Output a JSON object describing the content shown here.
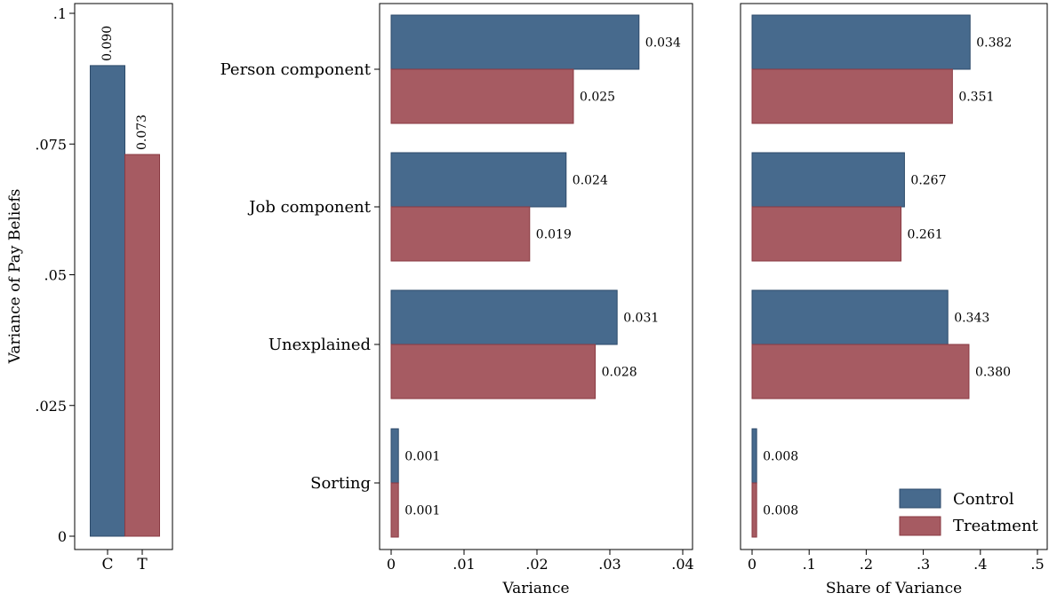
{
  "colors": {
    "control": "#476a8d",
    "control_edge": "#2c4a6a",
    "treatment": "#a65b62",
    "treatment_edge": "#8a3a42"
  },
  "legend": {
    "control": "Control",
    "treatment": "Treatment",
    "position": "bottom-right"
  },
  "chart_data": [
    {
      "id": "total",
      "type": "bar",
      "orientation": "vertical",
      "ylabel": "Variance of Pay Beliefs",
      "xlabel": "",
      "categories": [
        "C",
        "T"
      ],
      "values": [
        0.09,
        0.073
      ],
      "value_labels": [
        "0.090",
        "0.073"
      ],
      "ylim": [
        0,
        0.1
      ],
      "yticks": [
        0,
        0.025,
        0.05,
        0.075,
        0.1
      ],
      "ytick_labels": [
        "0",
        ".025",
        ".05",
        ".075",
        ".1"
      ],
      "grid": false
    },
    {
      "id": "variance",
      "type": "bar",
      "orientation": "horizontal",
      "xlabel": "Variance",
      "categories": [
        "Person component",
        "Job component",
        "Unexplained",
        "Sorting"
      ],
      "series": [
        {
          "name": "Control",
          "values": [
            0.034,
            0.024,
            0.031,
            0.001
          ],
          "labels": [
            "0.034",
            "0.024",
            "0.031",
            "0.001"
          ]
        },
        {
          "name": "Treatment",
          "values": [
            0.025,
            0.019,
            0.028,
            0.001
          ],
          "labels": [
            "0.025",
            "0.019",
            "0.028",
            "0.001"
          ]
        }
      ],
      "xlim": [
        0,
        0.04
      ],
      "xticks": [
        0,
        0.01,
        0.02,
        0.03,
        0.04
      ],
      "xtick_labels": [
        "0",
        ".01",
        ".02",
        ".03",
        ".04"
      ],
      "grid": false
    },
    {
      "id": "share",
      "type": "bar",
      "orientation": "horizontal",
      "xlabel": "Share of Variance",
      "categories": [
        "Person component",
        "Job component",
        "Unexplained",
        "Sorting"
      ],
      "series": [
        {
          "name": "Control",
          "values": [
            0.382,
            0.267,
            0.343,
            0.008
          ],
          "labels": [
            "0.382",
            "0.267",
            "0.343",
            "0.008"
          ]
        },
        {
          "name": "Treatment",
          "values": [
            0.351,
            0.261,
            0.38,
            0.008
          ],
          "labels": [
            "0.351",
            "0.261",
            "0.380",
            "0.008"
          ]
        }
      ],
      "xlim": [
        0,
        0.5
      ],
      "xticks": [
        0,
        0.1,
        0.2,
        0.3,
        0.4,
        0.5
      ],
      "xtick_labels": [
        "0",
        ".1",
        ".2",
        ".3",
        ".4",
        ".5"
      ],
      "grid": false
    }
  ]
}
